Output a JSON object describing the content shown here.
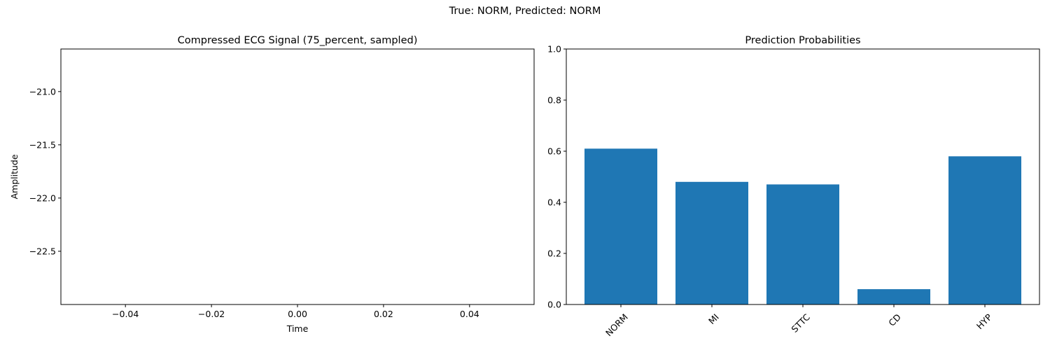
{
  "suptitle": "True: NORM, Predicted: NORM",
  "chart_data": [
    {
      "type": "line",
      "title": "Compressed ECG Signal (75_percent, sampled)",
      "xlabel": "Time",
      "ylabel": "Amplitude",
      "xlim": [
        -0.055,
        0.055
      ],
      "ylim": [
        -23.0,
        -20.6
      ],
      "xticks": [
        -0.04,
        -0.02,
        0.0,
        0.02,
        0.04
      ],
      "xtick_labels": [
        "−0.04",
        "−0.02",
        "0.00",
        "0.02",
        "0.04"
      ],
      "yticks": [
        -21.0,
        -21.5,
        -22.0,
        -22.5
      ],
      "ytick_labels": [
        "−21.0",
        "−21.5",
        "−22.0",
        "−22.5"
      ],
      "series": [],
      "grid": false
    },
    {
      "type": "bar",
      "title": "Prediction Probabilities",
      "categories": [
        "NORM",
        "MI",
        "STTC",
        "CD",
        "HYP"
      ],
      "values": [
        0.61,
        0.48,
        0.47,
        0.06,
        0.58
      ],
      "ylim": [
        0.0,
        1.0
      ],
      "yticks": [
        0.0,
        0.2,
        0.4,
        0.6,
        0.8,
        1.0
      ],
      "ytick_labels": [
        "0.0",
        "0.2",
        "0.4",
        "0.6",
        "0.8",
        "1.0"
      ],
      "bar_color": "#1f77b4",
      "xtick_rotation": "45 degrees",
      "grid": false
    }
  ]
}
